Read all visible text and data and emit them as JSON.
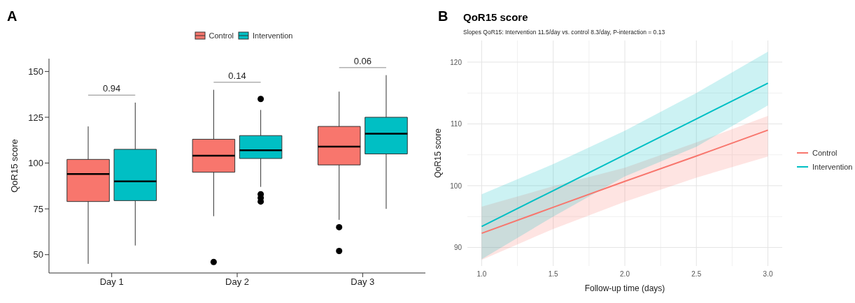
{
  "chart_data": [
    {
      "type": "box",
      "ylabel": "QoR15 score",
      "annotations": [
        "A",
        "0.94",
        "0.14",
        "0.06"
      ],
      "categories": [
        "Day 1",
        "Day 2",
        "Day 3"
      ],
      "ylim": [
        40,
        157
      ],
      "yticks": [
        50,
        75,
        100,
        125,
        150
      ],
      "grid": false,
      "legend": "top",
      "series": [
        {
          "name": "Control",
          "color": "#f8766d",
          "boxes": [
            {
              "low": 45,
              "q1": 79,
              "median": 94,
              "q3": 102,
              "high": 120
            },
            {
              "low": 71,
              "q1": 95,
              "median": 104,
              "q3": 113,
              "high": 140,
              "outliers": [
                46
              ]
            },
            {
              "low": 69,
              "q1": 99,
              "median": 109,
              "q3": 120,
              "high": 139,
              "outliers": [
                65,
                52
              ]
            }
          ]
        },
        {
          "name": "Intervention",
          "color": "#00bfc4",
          "boxes": [
            {
              "low": 55,
              "q1": 79.5,
              "median": 90,
              "q3": 107.5,
              "high": 133
            },
            {
              "low": 87,
              "q1": 102.5,
              "median": 107,
              "q3": 115,
              "high": 129,
              "outliers": [
                135,
                83,
                81,
                79
              ]
            },
            {
              "low": 75,
              "q1": 105,
              "median": 116,
              "q3": 125,
              "high": 148
            }
          ]
        }
      ]
    },
    {
      "type": "line",
      "title": "QoR15 score",
      "subtitle": "Slopes QoR15: Intervention 11.5/day vs. control 8.3/day, P-interaction = 0.13",
      "annotations": [
        "B"
      ],
      "xlabel": "Follow-up time (days)",
      "ylabel": "QoR15 score",
      "x": [
        1,
        1.5,
        2,
        2.5,
        3
      ],
      "xlim": [
        0.9,
        3.1
      ],
      "xticks": [
        {
          "value": 1,
          "label": "1.0"
        },
        1.5,
        {
          "value": 2,
          "label": "2.0"
        },
        2.5,
        {
          "value": 3,
          "label": "3.0"
        }
      ],
      "ylim": [
        87,
        123.5
      ],
      "yticks": [
        90,
        100,
        110,
        120
      ],
      "grid": true,
      "legend": "right",
      "line_style": "solid",
      "marker": "none",
      "series": [
        {
          "name": "Control",
          "color": "#f8766d",
          "values": [
            92.3,
            96.5,
            100.7,
            104.8,
            109
          ],
          "lower": [
            88,
            93,
            97.4,
            101.3,
            104.7
          ],
          "upper": [
            96.6,
            99.9,
            102.9,
            107,
            111.3
          ]
        },
        {
          "name": "Intervention",
          "color": "#00bfc4",
          "values": [
            93.4,
            99.2,
            105,
            110.8,
            116.6
          ],
          "lower": [
            88.1,
            95,
            101.5,
            106.3,
            113
          ],
          "upper": [
            98.6,
            103.5,
            108.9,
            115,
            121.7
          ]
        }
      ]
    }
  ]
}
